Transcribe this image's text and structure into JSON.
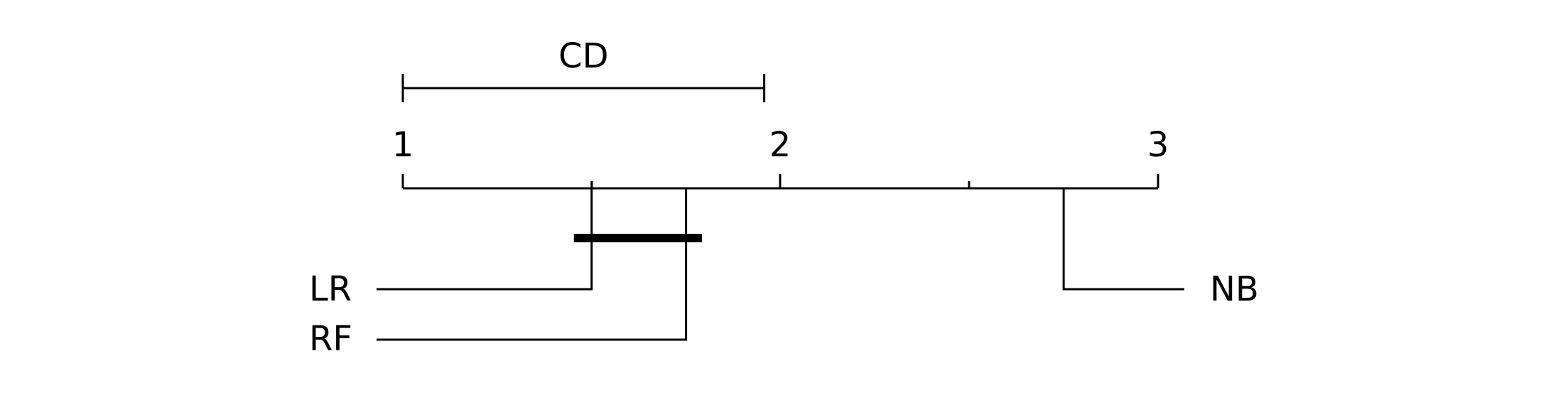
{
  "diagram": {
    "cd_label": "CD",
    "cd_value": 0.957,
    "axis": {
      "min": 1,
      "max": 3,
      "tick_labels": [
        "1",
        "2",
        "3"
      ]
    },
    "methods": [
      {
        "name": "LR",
        "rank": 1.5,
        "side": "left"
      },
      {
        "name": "RF",
        "rank": 1.75,
        "side": "left"
      },
      {
        "name": "NB",
        "rank": 2.75,
        "side": "right"
      }
    ],
    "cliques": [
      {
        "from": 1.453,
        "to": 1.792
      }
    ]
  }
}
